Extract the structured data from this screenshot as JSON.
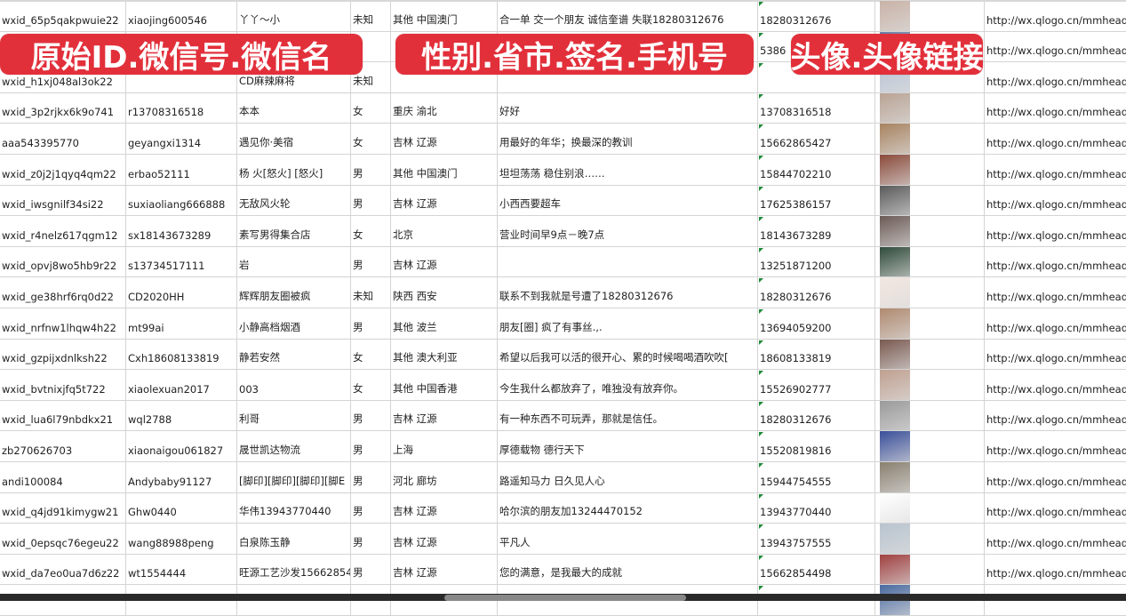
{
  "overlay_labels": [
    "原始ID.微信号.微信名",
    "性别.省市.签名.手机号",
    "头像.头像链接"
  ],
  "colors": {
    "overlay": "#e2303b",
    "grid": "#d4d4d4"
  },
  "rows": [
    {
      "id": "wxid_65p5qakpwuie22",
      "wechat": "xiaojing600546",
      "name": "丫丫～小",
      "gender": "未知",
      "region": "其他 中国澳门",
      "signature": "合一单 交一个朋友 诚信奎谱 失联18280312676",
      "phone": "18280312676",
      "avatar": "#c9b2a6",
      "url": "http://wx.qlogo.cn/mmhead"
    },
    {
      "id": "",
      "wechat": "",
      "name": "",
      "gender": "",
      "region": "",
      "signature": "",
      "phone": "5386",
      "avatar": "#6a7fa8",
      "url": "http://wx.qlogo.cn/mmhead"
    },
    {
      "id": "wxid_h1xj048al3ok22",
      "wechat": "",
      "name": "CD麻辣麻将",
      "gender": "未知",
      "region": "",
      "signature": "",
      "phone": "",
      "avatar": "#b9c4d6",
      "url": "http://wx.qlogo.cn/mmhead"
    },
    {
      "id": "wxid_3p2rjkx6k9o741",
      "wechat": "r13708316518",
      "name": "本本",
      "gender": "女",
      "region": "重庆 渝北",
      "signature": "好好",
      "phone": "13708316518",
      "avatar": "#b9a394",
      "url": "http://wx.qlogo.cn/mmhead"
    },
    {
      "id": "aaa543395770",
      "wechat": "geyangxi1314",
      "name": "遇见你·美宿",
      "gender": "女",
      "region": "吉林 辽源",
      "signature": "用最好的年华；换最深的教训",
      "phone": "15662865427",
      "avatar": "#a88360",
      "url": "http://wx.qlogo.cn/mmhead"
    },
    {
      "id": "wxid_z0j2j1qyq4qm22",
      "wechat": "erbao52111",
      "name": "杨 火[怒火] [怒火]",
      "gender": "男",
      "region": "其他 中国澳门",
      "signature": "坦坦荡荡 稳住别浪……",
      "phone": "15844702210",
      "avatar": "#8a4a3a",
      "url": "http://wx.qlogo.cn/mmhead"
    },
    {
      "id": "wxid_iwsgnilf34si22",
      "wechat": "suxiaoliang666888",
      "name": "无敌风火轮",
      "gender": "男",
      "region": "吉林 辽源",
      "signature": "小西西要超车",
      "phone": "17625386157",
      "avatar": "#5a5a5a",
      "url": "http://wx.qlogo.cn/mmhead"
    },
    {
      "id": "wxid_r4nelz617qgm12",
      "wechat": "sx18143673289",
      "name": "素写男得集合店",
      "gender": "女",
      "region": "北京",
      "signature": "营业时间早9点－晚7点",
      "phone": "18143673289",
      "avatar": "#6b5a55",
      "url": "http://wx.qlogo.cn/mmhead"
    },
    {
      "id": "wxid_opvj8wo5hb9r22",
      "wechat": "s13734517111",
      "name": "岩",
      "gender": "男",
      "region": "吉林 辽源",
      "signature": "",
      "phone": "13251871200",
      "avatar": "#2f4a3a",
      "url": "http://wx.qlogo.cn/mmhead"
    },
    {
      "id": "wxid_ge38hrf6rq0d22",
      "wechat": "CD2020HH",
      "name": "辉辉朋友圈被疯",
      "gender": "未知",
      "region": "陕西 西安",
      "signature": "联系不到我就是号遭了18280312676",
      "phone": "18280312676",
      "avatar": "#f2e6e0",
      "url": "http://wx.qlogo.cn/mmhead"
    },
    {
      "id": "wxid_nrfnw1lhqw4h22",
      "wechat": "mt99ai",
      "name": "小静高档烟酒",
      "gender": "男",
      "region": "其他 波兰",
      "signature": "朋友[圈] 疯了有事丝.,.",
      "phone": "13694059200",
      "avatar": "#b08a70",
      "url": "http://wx.qlogo.cn/mmhead"
    },
    {
      "id": "wxid_gzpijxdnlksh22",
      "wechat": "Cxh18608133819",
      "name": "静若安然",
      "gender": "女",
      "region": "其他 澳大利亚",
      "signature": "希望以后我可以活的很开心、累的时候喝喝酒吹吹[",
      "phone": "18608133819",
      "avatar": "#7a5a50",
      "url": "http://wx.qlogo.cn/mmhead"
    },
    {
      "id": "wxid_bvtnixjfq5t722",
      "wechat": "xiaolexuan2017",
      "name": "003",
      "gender": "女",
      "region": "其他 中国香港",
      "signature": "今生我什么都放弃了，唯独没有放弃你。",
      "phone": "15526902777",
      "avatar": "#c0a090",
      "url": "http://wx.qlogo.cn/mmhead"
    },
    {
      "id": "wxid_lua6l79nbdkx21",
      "wechat": "wql2788",
      "name": "利哥",
      "gender": "男",
      "region": "吉林 辽源",
      "signature": "有一种东西不可玩弄，那就是信任。",
      "phone": "18280312676",
      "avatar": "#9a9a9a",
      "url": "http://wx.qlogo.cn/mmhead"
    },
    {
      "id": "zb270626703",
      "wechat": "xiaonaigou061827",
      "name": "晟世凯达物流",
      "gender": "男",
      "region": "上海",
      "signature": "厚德载物 德行天下",
      "phone": "15520819816",
      "avatar": "#3a4f9a",
      "url": "http://wx.qlogo.cn/mmhead"
    },
    {
      "id": "andi100084",
      "wechat": "Andybaby91127",
      "name": "[脚印][脚印][脚印][脚E",
      "gender": "男",
      "region": "河北 廊坊",
      "signature": "路遥知马力 日久见人心",
      "phone": "15944754555",
      "avatar": "#8a8070",
      "url": "http://wx.qlogo.cn/mmhead"
    },
    {
      "id": "wxid_q4jd91kimygw21",
      "wechat": "Ghw0440",
      "name": "华伟13943770440",
      "gender": "男",
      "region": "吉林 辽源",
      "signature": "哈尔滨的朋友加13244470152",
      "phone": "13943770440",
      "avatar": "#ffffff",
      "url": "http://wx.qlogo.cn/mmhead"
    },
    {
      "id": "wxid_0epsqc76egeu22",
      "wechat": "wang88988peng",
      "name": "白泉陈玉静",
      "gender": "男",
      "region": "吉林 辽源",
      "signature": "平凡人",
      "phone": "13943757555",
      "avatar": "#b8c4d0",
      "url": "http://wx.qlogo.cn/mmhead"
    },
    {
      "id": "wxid_da7eo0ua7d6z22",
      "wechat": "wt1554444",
      "name": "旺源工艺沙发15662854",
      "gender": "男",
      "region": "吉林 辽源",
      "signature": "您的满意，是我最大的成就",
      "phone": "15662854498",
      "avatar": "#a04040",
      "url": "http://wx.qlogo.cn/mmhead"
    },
    {
      "id": "",
      "wechat": "",
      "name": "",
      "gender": "",
      "region": "",
      "signature": "",
      "phone": "",
      "avatar": "#4a6aa0",
      "url": ""
    }
  ]
}
